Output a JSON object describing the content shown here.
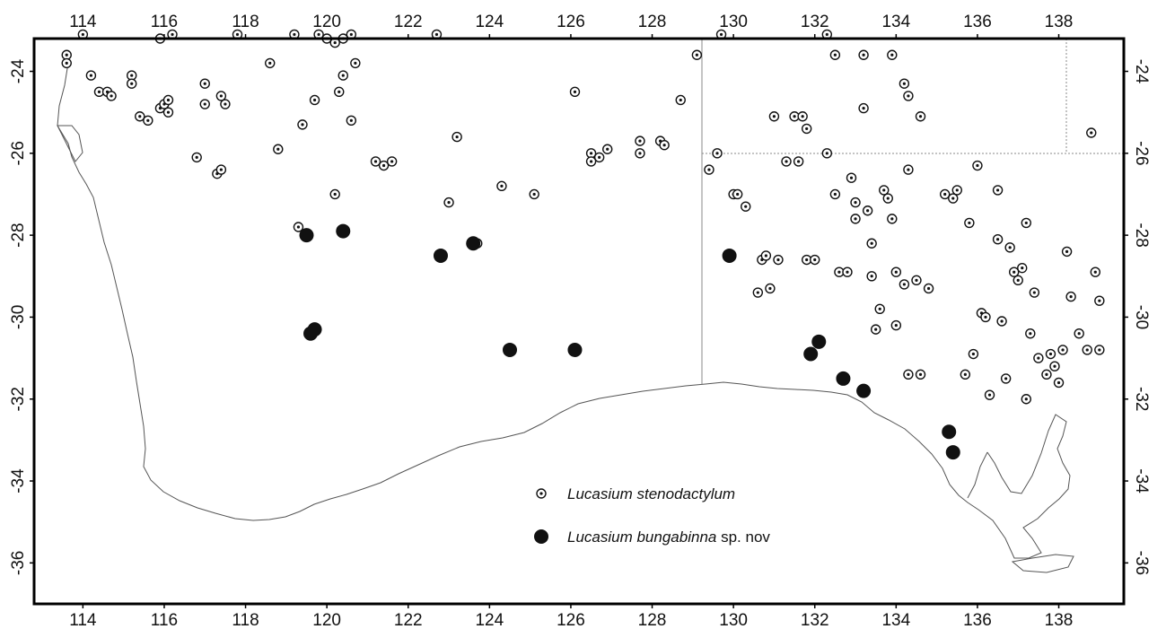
{
  "map": {
    "lon_ticks": [
      "114",
      "116",
      "118",
      "120",
      "122",
      "124",
      "126",
      "128",
      "130",
      "132",
      "134",
      "136",
      "138"
    ],
    "lat_ticks": [
      "-24",
      "-26",
      "-28",
      "-30",
      "-32",
      "-34",
      "-36"
    ],
    "legend": {
      "stenodactylum": {
        "species": "Lucasium stenodactylum",
        "suffix": ""
      },
      "bungabinna": {
        "species": "Lucasium bungabinna",
        "suffix": " sp. nov"
      }
    },
    "colors": {
      "frame": "#000000",
      "coast": "#555555",
      "border": "#8a8a8a",
      "marker": "#111111"
    },
    "marker_icons": [
      "circled-dot-icon",
      "filled-circle-icon"
    ]
  },
  "chart_data": {
    "type": "scatter",
    "xlim": [
      112.8,
      139.6
    ],
    "ylim": [
      -37.0,
      -23.2
    ],
    "series": [
      {
        "name": "Lucasium stenodactylum",
        "marker": "circled-dot",
        "points": [
          [
            113.6,
            -23.6
          ],
          [
            113.6,
            -23.8
          ],
          [
            114.0,
            -23.1
          ],
          [
            114.2,
            -24.1
          ],
          [
            114.4,
            -24.5
          ],
          [
            114.6,
            -24.5
          ],
          [
            114.7,
            -24.6
          ],
          [
            115.2,
            -24.1
          ],
          [
            115.2,
            -24.3
          ],
          [
            115.4,
            -25.1
          ],
          [
            115.6,
            -25.2
          ],
          [
            115.9,
            -23.2
          ],
          [
            115.9,
            -24.9
          ],
          [
            116.0,
            -24.8
          ],
          [
            116.1,
            -24.7
          ],
          [
            116.1,
            -25.0
          ],
          [
            116.2,
            -23.1
          ],
          [
            116.8,
            -26.1
          ],
          [
            117.0,
            -24.3
          ],
          [
            117.0,
            -24.8
          ],
          [
            117.3,
            -26.5
          ],
          [
            117.4,
            -24.6
          ],
          [
            117.4,
            -26.4
          ],
          [
            117.5,
            -24.8
          ],
          [
            117.8,
            -23.1
          ],
          [
            118.6,
            -23.8
          ],
          [
            118.8,
            -25.9
          ],
          [
            119.2,
            -23.1
          ],
          [
            119.3,
            -27.8
          ],
          [
            119.4,
            -25.3
          ],
          [
            119.7,
            -24.7
          ],
          [
            119.8,
            -23.1
          ],
          [
            120.0,
            -23.2
          ],
          [
            120.2,
            -23.3
          ],
          [
            120.4,
            -23.2
          ],
          [
            120.6,
            -23.1
          ],
          [
            120.3,
            -24.5
          ],
          [
            120.4,
            -24.1
          ],
          [
            120.7,
            -23.8
          ],
          [
            120.6,
            -25.2
          ],
          [
            120.2,
            -27.0
          ],
          [
            121.2,
            -26.2
          ],
          [
            121.4,
            -26.3
          ],
          [
            121.6,
            -26.2
          ],
          [
            122.7,
            -23.1
          ],
          [
            123.0,
            -27.2
          ],
          [
            123.2,
            -25.6
          ],
          [
            123.7,
            -28.2
          ],
          [
            124.3,
            -26.8
          ],
          [
            125.1,
            -27.0
          ],
          [
            126.1,
            -24.5
          ],
          [
            126.5,
            -26.0
          ],
          [
            126.5,
            -26.2
          ],
          [
            126.7,
            -26.1
          ],
          [
            126.9,
            -25.9
          ],
          [
            127.7,
            -25.7
          ],
          [
            127.7,
            -26.0
          ],
          [
            128.2,
            -25.7
          ],
          [
            128.3,
            -25.8
          ],
          [
            128.7,
            -24.7
          ],
          [
            129.1,
            -23.6
          ],
          [
            129.4,
            -26.4
          ],
          [
            129.6,
            -26.0
          ],
          [
            129.7,
            -23.1
          ],
          [
            130.0,
            -27.0
          ],
          [
            130.1,
            -27.0
          ],
          [
            130.3,
            -27.3
          ],
          [
            130.6,
            -29.4
          ],
          [
            130.7,
            -28.6
          ],
          [
            130.8,
            -28.5
          ],
          [
            130.9,
            -29.3
          ],
          [
            131.0,
            -25.1
          ],
          [
            131.1,
            -28.6
          ],
          [
            131.3,
            -26.2
          ],
          [
            131.5,
            -25.1
          ],
          [
            131.6,
            -26.2
          ],
          [
            131.7,
            -25.1
          ],
          [
            131.8,
            -25.4
          ],
          [
            131.8,
            -28.6
          ],
          [
            132.0,
            -28.6
          ],
          [
            132.3,
            -23.1
          ],
          [
            132.3,
            -26.0
          ],
          [
            132.5,
            -27.0
          ],
          [
            132.5,
            -23.6
          ],
          [
            132.6,
            -28.9
          ],
          [
            132.8,
            -28.9
          ],
          [
            132.9,
            -26.6
          ],
          [
            133.0,
            -27.2
          ],
          [
            133.0,
            -27.6
          ],
          [
            133.2,
            -23.6
          ],
          [
            133.2,
            -24.9
          ],
          [
            133.3,
            -27.4
          ],
          [
            133.4,
            -28.2
          ],
          [
            133.4,
            -29.0
          ],
          [
            133.6,
            -29.8
          ],
          [
            133.7,
            -26.9
          ],
          [
            133.8,
            -27.1
          ],
          [
            133.9,
            -27.6
          ],
          [
            133.9,
            -23.6
          ],
          [
            134.0,
            -28.9
          ],
          [
            134.0,
            -30.2
          ],
          [
            134.2,
            -29.2
          ],
          [
            134.2,
            -24.3
          ],
          [
            134.3,
            -24.6
          ],
          [
            134.3,
            -26.4
          ],
          [
            134.5,
            -29.1
          ],
          [
            134.6,
            -25.1
          ],
          [
            134.8,
            -29.3
          ],
          [
            134.6,
            -31.4
          ],
          [
            134.3,
            -31.4
          ],
          [
            133.5,
            -30.3
          ],
          [
            135.2,
            -27.0
          ],
          [
            135.4,
            -27.1
          ],
          [
            135.5,
            -26.9
          ],
          [
            135.8,
            -27.7
          ],
          [
            136.0,
            -26.3
          ],
          [
            136.1,
            -29.9
          ],
          [
            136.2,
            -30.0
          ],
          [
            136.5,
            -28.1
          ],
          [
            136.5,
            -26.9
          ],
          [
            136.6,
            -30.1
          ],
          [
            136.8,
            -28.3
          ],
          [
            137.0,
            -29.1
          ],
          [
            137.1,
            -28.8
          ],
          [
            137.2,
            -27.7
          ],
          [
            137.3,
            -30.4
          ],
          [
            137.4,
            -29.4
          ],
          [
            137.5,
            -31.0
          ],
          [
            137.7,
            -31.4
          ],
          [
            137.9,
            -31.2
          ],
          [
            138.0,
            -31.6
          ],
          [
            138.1,
            -30.8
          ],
          [
            138.3,
            -29.5
          ],
          [
            138.5,
            -30.4
          ],
          [
            138.7,
            -30.8
          ],
          [
            138.9,
            -28.9
          ],
          [
            139.0,
            -29.6
          ],
          [
            139.0,
            -30.8
          ],
          [
            138.8,
            -25.5
          ],
          [
            135.9,
            -30.9
          ],
          [
            135.7,
            -31.4
          ],
          [
            136.3,
            -31.9
          ],
          [
            137.2,
            -32.0
          ],
          [
            136.7,
            -31.5
          ],
          [
            137.8,
            -30.9
          ],
          [
            138.2,
            -28.4
          ],
          [
            136.9,
            -28.9
          ]
        ]
      },
      {
        "name": "Lucasium bungabinna sp. nov",
        "marker": "filled",
        "points": [
          [
            119.5,
            -28.0
          ],
          [
            120.4,
            -27.9
          ],
          [
            119.6,
            -30.4
          ],
          [
            119.7,
            -30.3
          ],
          [
            122.8,
            -28.5
          ],
          [
            123.6,
            -28.2
          ],
          [
            124.5,
            -30.8
          ],
          [
            126.1,
            -30.8
          ],
          [
            129.9,
            -28.5
          ],
          [
            131.9,
            -30.9
          ],
          [
            132.1,
            -30.6
          ],
          [
            132.7,
            -31.5
          ],
          [
            133.2,
            -31.8
          ],
          [
            135.3,
            -32.8
          ],
          [
            135.4,
            -33.3
          ]
        ]
      }
    ]
  }
}
